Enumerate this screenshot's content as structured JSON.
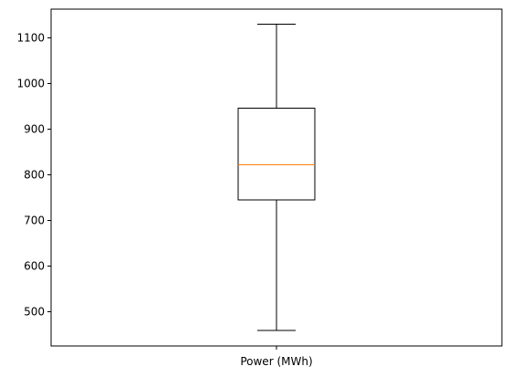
{
  "chart_data": {
    "type": "box",
    "categories": [
      "Power (MWh)"
    ],
    "boxes": [
      {
        "label": "Power (MWh)",
        "whisker_low": 459,
        "q1": 745,
        "median": 822,
        "q3": 946,
        "whisker_high": 1130
      }
    ],
    "y_ticks": [
      500,
      600,
      700,
      800,
      900,
      1000,
      1100
    ],
    "ylim": [
      425,
      1163
    ],
    "grid": false,
    "colors": {
      "box": "#000000",
      "median": "#ff7f0e",
      "axes": "#000000",
      "background": "#ffffff"
    }
  }
}
